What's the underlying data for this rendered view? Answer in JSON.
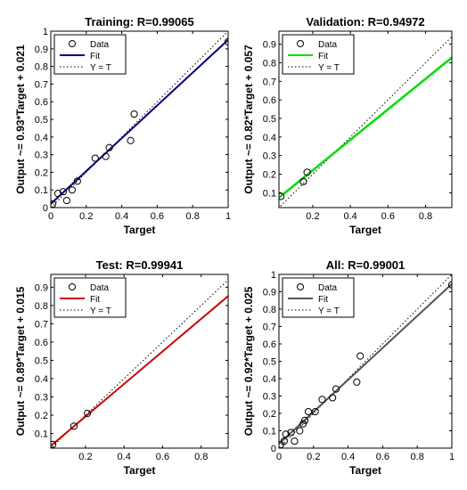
{
  "chart_data": [
    {
      "id": "training",
      "type": "scatter",
      "title": "Training: R=0.99065",
      "xlabel": "Target",
      "ylabel": "Output ~= 0.93*Target + 0.021",
      "xlim": [
        0,
        1
      ],
      "ylim": [
        0,
        1
      ],
      "xticks": [
        "0",
        "0.2",
        "0.4",
        "0.6",
        "0.8",
        "1"
      ],
      "yticks": [
        "0",
        "0.1",
        "0.2",
        "0.3",
        "0.4",
        "0.5",
        "0.6",
        "0.7",
        "0.8",
        "0.9",
        "1"
      ],
      "legend_position": "top-left",
      "fit": {
        "slope": 0.93,
        "intercept": 0.021,
        "color": "#00007f"
      },
      "points": [
        {
          "x": 0.01,
          "y": 0.02
        },
        {
          "x": 0.04,
          "y": 0.08
        },
        {
          "x": 0.07,
          "y": 0.09
        },
        {
          "x": 0.09,
          "y": 0.04
        },
        {
          "x": 0.12,
          "y": 0.1
        },
        {
          "x": 0.15,
          "y": 0.15
        },
        {
          "x": 0.25,
          "y": 0.28
        },
        {
          "x": 0.31,
          "y": 0.29
        },
        {
          "x": 0.33,
          "y": 0.34
        },
        {
          "x": 0.45,
          "y": 0.38
        },
        {
          "x": 0.47,
          "y": 0.53
        },
        {
          "x": 1.0,
          "y": 0.94
        }
      ],
      "legend": [
        "Data",
        "Fit",
        "Y = T"
      ]
    },
    {
      "id": "validation",
      "type": "scatter",
      "title": "Validation: R=0.94972",
      "xlabel": "Target",
      "ylabel": "Output ~= 0.82*Target + 0.057",
      "xlim": [
        0.02,
        0.94
      ],
      "ylim": [
        0.02,
        0.97
      ],
      "xticks": [
        "0.2",
        "0.4",
        "0.6",
        "0.8"
      ],
      "yticks": [
        "0.1",
        "0.2",
        "0.3",
        "0.4",
        "0.5",
        "0.6",
        "0.7",
        "0.8",
        "0.9"
      ],
      "legend_position": "top-left",
      "fit": {
        "slope": 0.82,
        "intercept": 0.057,
        "color": "#00dd00"
      },
      "points": [
        {
          "x": 0.03,
          "y": 0.08
        },
        {
          "x": 0.15,
          "y": 0.16
        },
        {
          "x": 0.17,
          "y": 0.21
        }
      ],
      "legend": [
        "Data",
        "Fit",
        "Y = T"
      ]
    },
    {
      "id": "test",
      "type": "scatter",
      "title": "Test: R=0.99941",
      "xlabel": "Target",
      "ylabel": "Output ~= 0.89*Target + 0.015",
      "xlim": [
        0.02,
        0.94
      ],
      "ylim": [
        0.02,
        0.97
      ],
      "xticks": [
        "0.2",
        "0.4",
        "0.6",
        "0.8"
      ],
      "yticks": [
        "0.1",
        "0.2",
        "0.3",
        "0.4",
        "0.5",
        "0.6",
        "0.7",
        "0.8",
        "0.9"
      ],
      "legend_position": "top-left",
      "fit": {
        "slope": 0.89,
        "intercept": 0.015,
        "color": "#cc0000"
      },
      "points": [
        {
          "x": 0.03,
          "y": 0.04
        },
        {
          "x": 0.14,
          "y": 0.14
        },
        {
          "x": 0.21,
          "y": 0.21
        }
      ],
      "legend": [
        "Data",
        "Fit",
        "Y = T"
      ]
    },
    {
      "id": "all",
      "type": "scatter",
      "title": "All: R=0.99001",
      "xlabel": "Target",
      "ylabel": "Output ~= 0.92*Target + 0.025",
      "xlim": [
        0,
        1
      ],
      "ylim": [
        0,
        1
      ],
      "xticks": [
        "0",
        "0.2",
        "0.4",
        "0.6",
        "0.8",
        "1"
      ],
      "yticks": [
        "0",
        "0.1",
        "0.2",
        "0.3",
        "0.4",
        "0.5",
        "0.6",
        "0.7",
        "0.8",
        "0.9",
        "1"
      ],
      "legend_position": "top-left",
      "fit": {
        "slope": 0.92,
        "intercept": 0.025,
        "color": "#555555"
      },
      "points": [
        {
          "x": 0.01,
          "y": 0.02
        },
        {
          "x": 0.03,
          "y": 0.04
        },
        {
          "x": 0.04,
          "y": 0.08
        },
        {
          "x": 0.07,
          "y": 0.09
        },
        {
          "x": 0.09,
          "y": 0.04
        },
        {
          "x": 0.12,
          "y": 0.1
        },
        {
          "x": 0.14,
          "y": 0.14
        },
        {
          "x": 0.15,
          "y": 0.16
        },
        {
          "x": 0.17,
          "y": 0.21
        },
        {
          "x": 0.21,
          "y": 0.21
        },
        {
          "x": 0.25,
          "y": 0.28
        },
        {
          "x": 0.31,
          "y": 0.29
        },
        {
          "x": 0.33,
          "y": 0.34
        },
        {
          "x": 0.45,
          "y": 0.38
        },
        {
          "x": 0.47,
          "y": 0.53
        },
        {
          "x": 1.0,
          "y": 0.94
        }
      ],
      "legend": [
        "Data",
        "Fit",
        "Y = T"
      ]
    }
  ]
}
